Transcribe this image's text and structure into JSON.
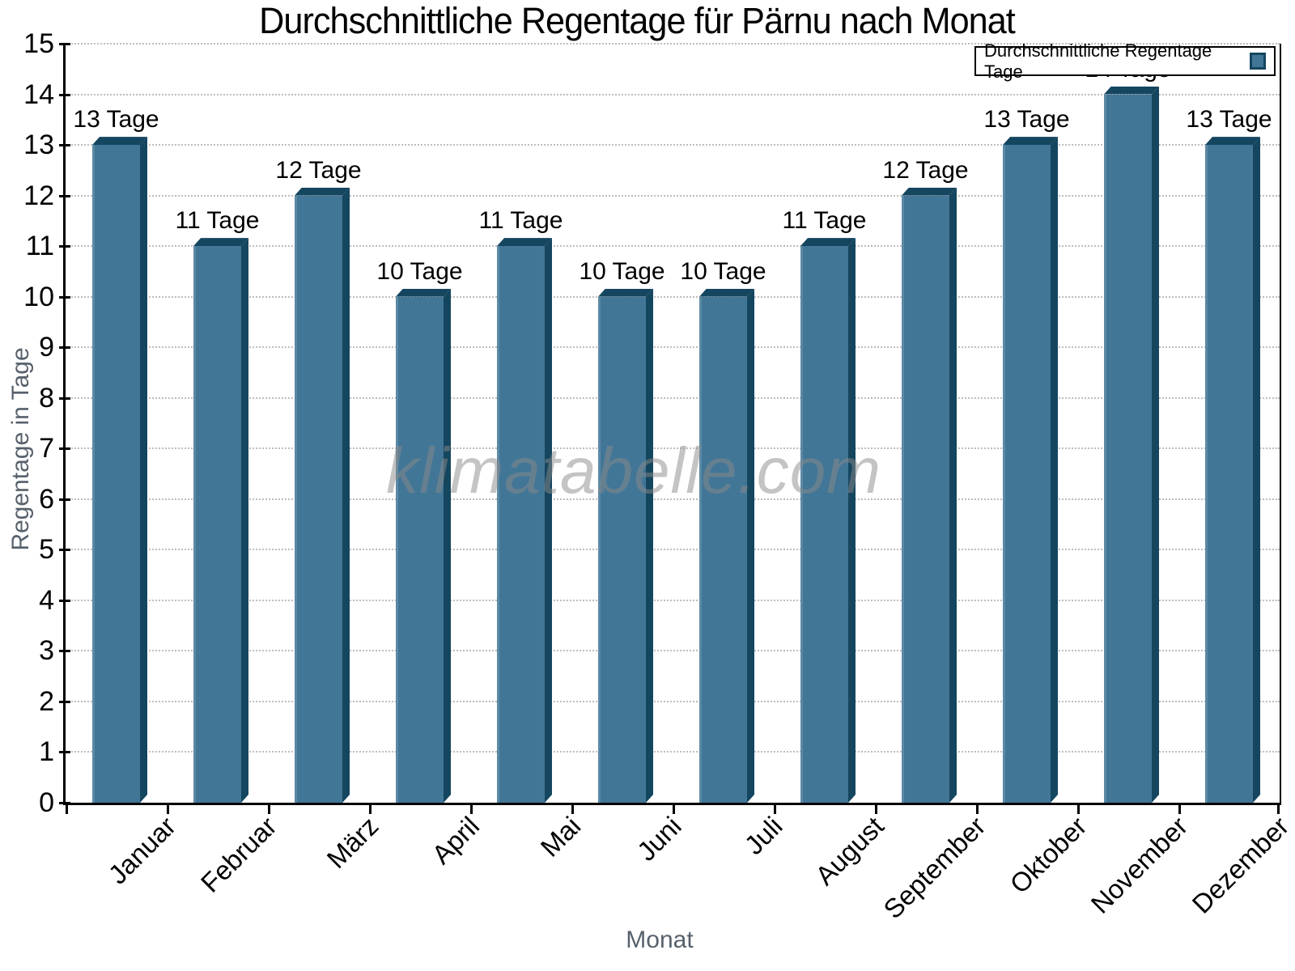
{
  "chart_data": {
    "type": "bar",
    "title": "Durchschnittliche Regentage für Pärnu nach Monat",
    "xlabel": "Monat",
    "ylabel": "Regentage in Tage",
    "watermark": "klimatabelle.com",
    "legend": {
      "label": "Durchschnittliche Regentage Tage",
      "position": "top-right"
    },
    "categories": [
      "Januar",
      "Februar",
      "März",
      "April",
      "Mai",
      "Juni",
      "Juli",
      "August",
      "September",
      "Oktober",
      "November",
      "Dezember"
    ],
    "values": [
      13,
      11,
      12,
      10,
      11,
      10,
      10,
      11,
      12,
      13,
      14,
      13
    ],
    "value_labels": [
      "13 Tage",
      "11 Tage",
      "12 Tage",
      "10 Tage",
      "11 Tage",
      "10 Tage",
      "10 Tage",
      "11 Tage",
      "12 Tage",
      "13 Tage",
      "14 Tage",
      "13 Tage"
    ],
    "ylim": [
      0,
      15
    ],
    "ytick_step": 1,
    "grid": "dotted-horizontal",
    "bar_style": "3d-extruded-up-right",
    "colors": {
      "bar_face": "#427697",
      "bar_shade": "#15465f",
      "bar_highlight": "#5c89a4",
      "grid": "#bdbdbd",
      "axis": "#000000",
      "axis_title": "#57616c",
      "watermark": "#8a8a8a"
    }
  }
}
